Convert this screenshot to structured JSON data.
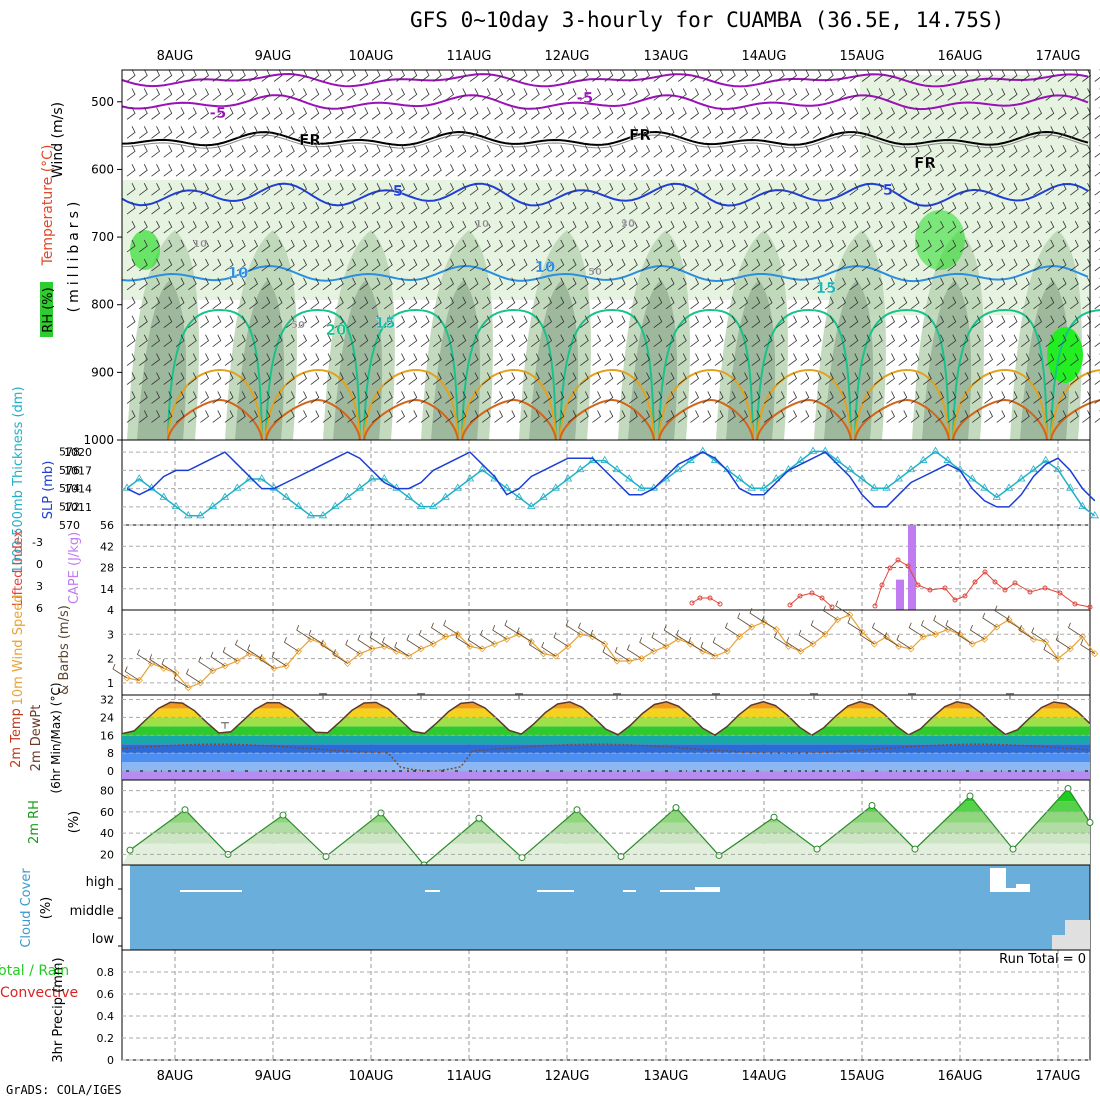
{
  "title": "GFS 0~10day 3-hourly for CUAMBA (36.5E, 14.75S)",
  "credit": "GrADS: COLA/IGES",
  "dates": [
    "8AUG",
    "9AUG",
    "10AUG",
    "11AUG",
    "12AUG",
    "13AUG",
    "14AUG",
    "15AUG",
    "16AUG",
    "17AUG"
  ],
  "colors": {
    "purple": "#9b10b8",
    "black": "#000000",
    "blue": "#1f3fd6",
    "lightblue": "#2a8fe0",
    "teal": "#1fb5b5",
    "green": "#18c28a",
    "orange": "#e3a11e",
    "darkorange": "#d4641a",
    "rh_light": "#e6f3e0",
    "rh_mid": "#b9d3b3",
    "rh_dark": "#8faa8e",
    "rh_bright": "#33dd33",
    "slp": "#1a3ed6",
    "thick": "#20b0c8",
    "lifted": "#e0453a",
    "cape": "#c07cf0",
    "wind": "#e8a235",
    "barb": "#5b4632",
    "cloud": "#6aaedb"
  },
  "panel_labels": {
    "upper_wind": "Wind (m/s)",
    "upper_temp": "Temperature (°C)",
    "upper_rh": "RH (%)",
    "upper_mb": "(millibars)",
    "slp": "SLP (mb)",
    "thickness": "1000-500mb Thickness (dm)",
    "lifted": "Lifted Index",
    "cape": "CAPE (J/kg)",
    "wind10_speed": "10m Wind Speed",
    "wind10_barbs": "& Barbs (m/s)",
    "t2m": "2m Temp",
    "dewpt": "2m DewPt",
    "t2m_note": "(6hr Min/Max) (°C)",
    "rh2m": "2m RH",
    "rh2m_unit": "(%)",
    "cloud": "Cloud Cover",
    "cloud_unit": "(%)",
    "precip_total": "Total / Rain",
    "precip_conv": "Convective",
    "precip": "3hr Precip (mm)",
    "run_total": "Run Total = 0"
  },
  "contour_labels": [
    "-5",
    "-5",
    "FR",
    "FR",
    "FR",
    "5",
    "5",
    "10",
    "10",
    "15",
    "15",
    "20",
    "10",
    "10",
    "10",
    "30",
    "50",
    "50"
  ],
  "chart_data": [
    {
      "type": "area",
      "panel": "upper-air time-height section",
      "ylabel": "(millibars)",
      "y_ticks": [
        500,
        600,
        700,
        800,
        900,
        1000
      ],
      "ylim": [
        450,
        1000
      ],
      "temperature_isotherms_C": [
        -5,
        0,
        5,
        10,
        15,
        20
      ],
      "freezing_level_label": "FR",
      "rh_shading": "light green >30%, grey-green 50-90%, bright green >90%"
    },
    {
      "type": "line",
      "panel": "SLP and thickness",
      "x": [
        0,
        1,
        2,
        3,
        4,
        5,
        6,
        7,
        8,
        9,
        10,
        11,
        12,
        13,
        14,
        15,
        16,
        17,
        18,
        19,
        20,
        21,
        22,
        23,
        24,
        25,
        26,
        27,
        28,
        29,
        30,
        31,
        32,
        33,
        34,
        35,
        36,
        37,
        38,
        39,
        40,
        41,
        42,
        43,
        44,
        45,
        46,
        47,
        48,
        49,
        50,
        51,
        52,
        53,
        54,
        55,
        56,
        57,
        58,
        59,
        60,
        61,
        62,
        63,
        64,
        65,
        66,
        67,
        68,
        69,
        70,
        71,
        72,
        73,
        74,
        75,
        76,
        77,
        78,
        79
      ],
      "series": [
        {
          "name": "SLP (mb)",
          "axis": "right",
          "y_ticks": [
            1011,
            1014,
            1017,
            1020
          ],
          "values": [
            1014,
            1013,
            1014,
            1016,
            1017,
            1017,
            1018,
            1019,
            1020,
            1018,
            1016,
            1014,
            1014,
            1015,
            1016,
            1017,
            1018,
            1019,
            1020,
            1019,
            1017,
            1015,
            1014,
            1014,
            1015,
            1017,
            1018,
            1019,
            1020,
            1018,
            1016,
            1013,
            1014,
            1016,
            1017,
            1018,
            1019,
            1019,
            1019,
            1017,
            1015,
            1013,
            1013,
            1014,
            1016,
            1018,
            1019,
            1020,
            1019,
            1017,
            1014,
            1013,
            1013,
            1015,
            1017,
            1018,
            1019,
            1020,
            1018,
            1016,
            1013,
            1011,
            1011,
            1013,
            1015,
            1016,
            1017,
            1018,
            1017,
            1014,
            1012,
            1011,
            1011,
            1013,
            1016,
            1018,
            1019,
            1017,
            1014,
            1012
          ]
        },
        {
          "name": "1000-500mb Thickness (dm)",
          "axis": "left",
          "y_ticks": [
            570,
            572,
            574,
            576,
            578
          ],
          "values": [
            574,
            575,
            574,
            573,
            572,
            571,
            571,
            572,
            573,
            574,
            575,
            575,
            574,
            573,
            572,
            571,
            571,
            572,
            573,
            574,
            575,
            575,
            574,
            573,
            572,
            572,
            573,
            574,
            575,
            576,
            575,
            574,
            573,
            572,
            573,
            574,
            575,
            576,
            577,
            577,
            576,
            575,
            574,
            574,
            575,
            576,
            577,
            578,
            577,
            576,
            575,
            574,
            574,
            575,
            576,
            577,
            578,
            578,
            577,
            576,
            575,
            574,
            574,
            575,
            576,
            577,
            578,
            577,
            576,
            575,
            574,
            573,
            574,
            575,
            576,
            577,
            576,
            574,
            572,
            571
          ]
        }
      ]
    },
    {
      "type": "bar",
      "panel": "Lifted index and CAPE",
      "lifted_index_y_ticks": [
        -3,
        0,
        3,
        6
      ],
      "cape_y_ticks": [
        4,
        14,
        28,
        42,
        56
      ],
      "cape_bars": [
        {
          "date": "15AUG",
          "hour": 9,
          "value": 20
        },
        {
          "date": "15AUG",
          "hour": 12,
          "value": 56
        }
      ],
      "lifted_index_segments": "values between 0 and 6 after 13AUG"
    },
    {
      "type": "line",
      "panel": "10m wind speed",
      "ylabel": "10m Wind Speed & Barbs (m/s)",
      "y_ticks": [
        1,
        2,
        3
      ],
      "values": [
        1.2,
        1.1,
        1.8,
        1.6,
        1.4,
        0.8,
        1.0,
        1.5,
        1.7,
        1.9,
        2.2,
        2.0,
        1.6,
        1.7,
        2.3,
        2.8,
        2.6,
        2.2,
        1.8,
        2.2,
        2.4,
        2.5,
        2.3,
        2.1,
        2.4,
        2.6,
        2.9,
        3.0,
        2.5,
        2.4,
        2.6,
        2.8,
        3.0,
        2.7,
        2.2,
        2.1,
        2.5,
        3.0,
        2.9,
        2.6,
        1.9,
        1.9,
        2.0,
        2.3,
        2.5,
        2.8,
        2.6,
        2.3,
        2.1,
        2.3,
        2.9,
        3.3,
        3.5,
        3.2,
        2.5,
        2.3,
        2.6,
        3.0,
        3.6,
        3.8,
        3.1,
        2.6,
        2.9,
        2.5,
        2.4,
        2.9,
        3.0,
        3.2,
        3.0,
        2.6,
        2.8,
        3.3,
        3.6,
        3.2,
        2.8,
        2.7,
        2.0,
        2.4,
        2.9,
        2.2
      ]
    },
    {
      "type": "area",
      "panel": "2m temperature and dew point",
      "ylabel": "2m Temp / 2m DewPt (6hr Min/Max) (°C)",
      "y_ticks": [
        0,
        8,
        16,
        24,
        32
      ],
      "ylim": [
        -4,
        34
      ],
      "temp_max": [
        18,
        31,
        31,
        31,
        31,
        31,
        31,
        31,
        31,
        31,
        30
      ],
      "temp_min": [
        16,
        16,
        16,
        16,
        15,
        16,
        16,
        16,
        16,
        16,
        19
      ],
      "dewpoint": "8 to 12 °C, dips near 0 on 10AUG/11AUG"
    },
    {
      "type": "area",
      "panel": "2m relative humidity",
      "ylabel": "2m RH (%)",
      "y_ticks": [
        20,
        40,
        60,
        80
      ],
      "ylim": [
        10,
        90
      ],
      "peaks": [
        62,
        57,
        59,
        54,
        62,
        64,
        55,
        66,
        75,
        82
      ],
      "troughs": [
        24,
        20,
        18,
        10,
        17,
        18,
        19,
        25,
        25,
        25
      ]
    },
    {
      "type": "heatmap",
      "panel": "Cloud cover",
      "ylabel": "Cloud Cover (%)",
      "levels": [
        "high",
        "middle",
        "low"
      ],
      "note": "low cloud fraction nearly zero; isolated high cloud near end"
    },
    {
      "type": "bar",
      "panel": "3hr precipitation",
      "ylabel": "3hr Precip (mm)",
      "y_ticks": [
        0,
        0.2,
        0.4,
        0.6,
        0.8
      ],
      "ylim": [
        0,
        1.0
      ],
      "run_total": 0,
      "values": []
    }
  ]
}
